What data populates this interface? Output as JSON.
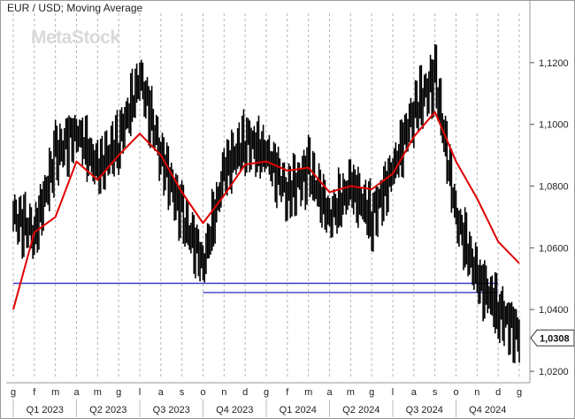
{
  "header": {
    "title": "EUR / USD; Moving Average",
    "watermark": "MetaStock"
  },
  "chart_data": {
    "type": "line",
    "title": "EUR / USD; Moving Average",
    "xlabel": "",
    "ylabel": "",
    "ylim": [
      1.018,
      1.136
    ],
    "grid": "vertical dashed",
    "y_ticks": [
      "1,0200",
      "1,0400",
      "1,0600",
      "1,0800",
      "1,1000",
      "1,1200"
    ],
    "y_tick_values": [
      1.02,
      1.04,
      1.06,
      1.08,
      1.1,
      1.12
    ],
    "month_labels": [
      "g",
      "f",
      "m",
      "a",
      "m",
      "g",
      "l",
      "a",
      "s",
      "o",
      "n",
      "d",
      "g",
      "f",
      "m",
      "a",
      "m",
      "g",
      "l",
      "a",
      "s",
      "o",
      "n",
      "d",
      "g"
    ],
    "quarter_labels": [
      "Q1 2023",
      "Q2 2023",
      "Q3 2023",
      "Q4 2023",
      "Q1 2024",
      "Q2 2024",
      "Q3 2024",
      "Q4 2024"
    ],
    "last_value_label": "1,0308",
    "last_value": 1.0308,
    "x": [
      "2023-01",
      "2023-02",
      "2023-03",
      "2023-04",
      "2023-05",
      "2023-06",
      "2023-07",
      "2023-08",
      "2023-09",
      "2023-10",
      "2023-11",
      "2023-12",
      "2024-01",
      "2024-02",
      "2024-03",
      "2024-04",
      "2024-05",
      "2024-06",
      "2024-07",
      "2024-08",
      "2024-09",
      "2024-10",
      "2024-11",
      "2024-12",
      "2025-01"
    ],
    "series": [
      {
        "kind": "price-bars",
        "color": "#000000",
        "values": [
          1.07,
          1.065,
          1.09,
          1.098,
          1.085,
          1.095,
          1.115,
          1.09,
          1.07,
          1.055,
          1.085,
          1.095,
          1.09,
          1.078,
          1.085,
          1.07,
          1.08,
          1.07,
          1.085,
          1.105,
          1.115,
          1.07,
          1.05,
          1.04,
          1.0308
        ]
      },
      {
        "kind": "moving-average",
        "color": "#e00000",
        "values": [
          1.04,
          1.065,
          1.07,
          1.088,
          1.082,
          1.09,
          1.097,
          1.09,
          1.078,
          1.068,
          1.077,
          1.087,
          1.088,
          1.085,
          1.086,
          1.078,
          1.08,
          1.079,
          1.084,
          1.096,
          1.104,
          1.088,
          1.076,
          1.062,
          1.055
        ]
      }
    ],
    "support_lines": [
      {
        "color": "#3c3cc8",
        "from": "2023-01",
        "to": "2024-12",
        "y_start": 1.0485,
        "y_end": 1.0485
      },
      {
        "color": "#3c3cc8",
        "from": "2023-10",
        "to": "2024-12",
        "y_start": 1.0455,
        "y_end": 1.0455
      }
    ]
  }
}
